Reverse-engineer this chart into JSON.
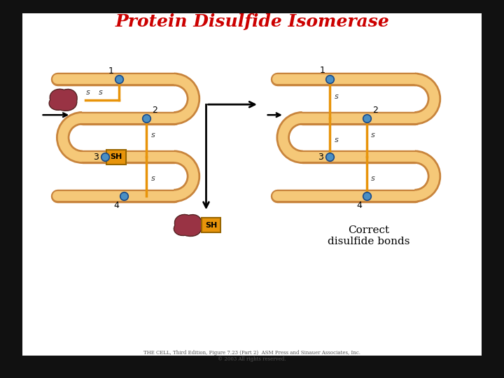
{
  "title": "Protein Disulfide Isomerase",
  "title_color": "#cc0000",
  "title_fontsize": 18,
  "background_color": "#111111",
  "panel_color": "#ffffff",
  "tube_color": "#f5c878",
  "tube_edge_color": "#c8843c",
  "bond_color": "#e8940a",
  "node_color": "#4a8fc4",
  "node_edge_color": "#1a4a88",
  "sh_box_color": "#e8940a",
  "sh_fontsize": 8,
  "label_fontsize": 9,
  "s_label_fontsize": 8,
  "enzyme_color": "#993344",
  "footnote": "THE CELL, Third Edition, Figure 7.23 (Part 2)  ASM Press and Sinauer Associates, Inc.\n© 2003 All rights reserved.",
  "footnote_fontsize": 5,
  "correct_text": "Correct\ndisulfide bonds",
  "correct_fontsize": 11
}
